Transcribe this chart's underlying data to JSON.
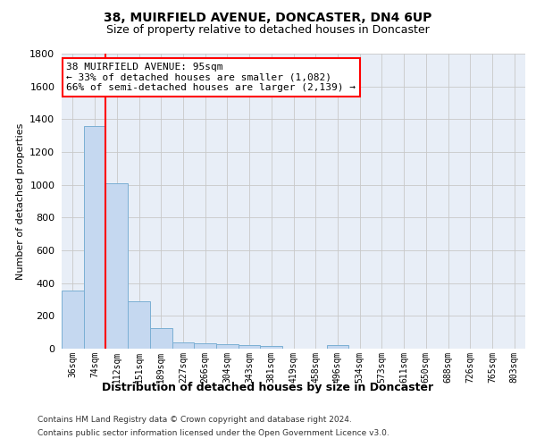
{
  "title": "38, MUIRFIELD AVENUE, DONCASTER, DN4 6UP",
  "subtitle": "Size of property relative to detached houses in Doncaster",
  "xlabel": "Distribution of detached houses by size in Doncaster",
  "ylabel": "Number of detached properties",
  "footer_line1": "Contains HM Land Registry data © Crown copyright and database right 2024.",
  "footer_line2": "Contains public sector information licensed under the Open Government Licence v3.0.",
  "bar_labels": [
    "36sqm",
    "74sqm",
    "112sqm",
    "151sqm",
    "189sqm",
    "227sqm",
    "266sqm",
    "304sqm",
    "343sqm",
    "381sqm",
    "419sqm",
    "458sqm",
    "496sqm",
    "534sqm",
    "573sqm",
    "611sqm",
    "650sqm",
    "688sqm",
    "726sqm",
    "765sqm",
    "803sqm"
  ],
  "bar_values": [
    355,
    1360,
    1010,
    290,
    125,
    40,
    35,
    30,
    20,
    15,
    0,
    0,
    20,
    0,
    0,
    0,
    0,
    0,
    0,
    0,
    0
  ],
  "bar_color": "#c5d8f0",
  "bar_edgecolor": "#7bafd4",
  "vline_x_position": 1.5,
  "vline_color": "red",
  "annotation_text": "38 MUIRFIELD AVENUE: 95sqm\n← 33% of detached houses are smaller (1,082)\n66% of semi-detached houses are larger (2,139) →",
  "annotation_box_color": "white",
  "annotation_box_edgecolor": "red",
  "ylim": [
    0,
    1800
  ],
  "yticks": [
    0,
    200,
    400,
    600,
    800,
    1000,
    1200,
    1400,
    1600,
    1800
  ],
  "figure_background": "#ffffff",
  "axes_background": "#e8eef7",
  "grid_color": "#c8c8c8",
  "title_fontsize": 10,
  "subtitle_fontsize": 9
}
